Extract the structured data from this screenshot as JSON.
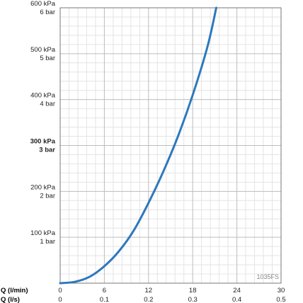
{
  "chart_data": {
    "type": "line",
    "x_axes": [
      {
        "label": "Q (l/min)",
        "ticks": [
          "0",
          "6",
          "12",
          "18",
          "24",
          "30"
        ],
        "range": [
          0,
          30
        ]
      },
      {
        "label": "Q (l/s)",
        "ticks": [
          "0",
          "0.1",
          "0.2",
          "0.3",
          "0.4",
          "0.5"
        ],
        "range": [
          0,
          0.5
        ]
      }
    ],
    "y_ticks": [
      {
        "value": 100,
        "kpa": "100 kPa",
        "bar": "1 bar",
        "bold": false
      },
      {
        "value": 200,
        "kpa": "200 kPa",
        "bar": "2 bar",
        "bold": false
      },
      {
        "value": 300,
        "kpa": "300 kPa",
        "bar": "3 bar",
        "bold": true
      },
      {
        "value": 400,
        "kpa": "400 kPa",
        "bar": "4 bar",
        "bold": false
      },
      {
        "value": 500,
        "kpa": "500 kPa",
        "bar": "5 bar",
        "bold": false
      },
      {
        "value": 600,
        "kpa": "600 kPa",
        "bar": "6 bar",
        "bold": false
      }
    ],
    "ylim": [
      0,
      600
    ],
    "xlim": [
      0,
      30
    ],
    "grid": true,
    "series": [
      {
        "color": "#2e78bd",
        "points": [
          [
            0,
            0
          ],
          [
            2,
            3
          ],
          [
            4,
            14
          ],
          [
            6,
            37
          ],
          [
            8,
            70
          ],
          [
            10,
            115
          ],
          [
            12,
            175
          ],
          [
            14,
            243
          ],
          [
            16,
            320
          ],
          [
            18,
            410
          ],
          [
            20,
            515
          ],
          [
            21.2,
            600
          ]
        ]
      }
    ],
    "annotation": "1035FS"
  }
}
